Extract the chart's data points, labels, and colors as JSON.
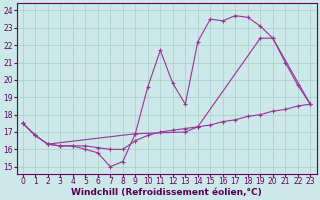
{
  "background_color": "#cce8e8",
  "plot_bg_color": "#cce8e8",
  "grid_color": "#aacccc",
  "line_color": "#993399",
  "xlabel": "Windchill (Refroidissement éolien,°C)",
  "xlabel_fontsize": 6.5,
  "tick_fontsize": 5.5,
  "ylim": [
    14.6,
    24.4
  ],
  "xlim": [
    -0.5,
    23.5
  ],
  "yticks": [
    15,
    16,
    17,
    18,
    19,
    20,
    21,
    22,
    23,
    24
  ],
  "xticks": [
    0,
    1,
    2,
    3,
    4,
    5,
    6,
    7,
    8,
    9,
    10,
    11,
    12,
    13,
    14,
    15,
    16,
    17,
    18,
    19,
    20,
    21,
    22,
    23
  ],
  "line1_x": [
    0,
    1,
    2,
    3,
    4,
    5,
    6,
    7,
    8,
    9,
    10,
    11,
    12,
    13,
    14,
    15,
    16,
    17,
    18,
    19,
    20,
    21,
    22,
    23
  ],
  "line1_y": [
    17.5,
    16.8,
    16.3,
    16.2,
    16.2,
    16.2,
    16.1,
    16.0,
    16.0,
    16.5,
    16.8,
    17.0,
    17.1,
    17.2,
    17.3,
    17.4,
    17.6,
    17.7,
    17.9,
    18.0,
    18.2,
    18.3,
    18.5,
    18.6
  ],
  "line2_x": [
    0,
    1,
    2,
    3,
    4,
    5,
    6,
    7,
    8,
    9,
    10,
    11,
    12,
    13,
    14,
    15,
    16,
    17,
    18,
    19,
    20,
    21,
    22,
    23
  ],
  "line2_y": [
    17.5,
    16.8,
    16.3,
    16.2,
    16.2,
    16.0,
    15.8,
    15.0,
    15.3,
    16.9,
    19.6,
    21.7,
    19.8,
    18.6,
    22.2,
    23.5,
    23.4,
    23.7,
    23.6,
    23.1,
    22.4,
    21.0,
    19.7,
    18.6
  ],
  "line3_x": [
    0,
    1,
    2,
    9,
    13,
    14,
    19,
    20,
    23
  ],
  "line3_y": [
    17.5,
    16.8,
    16.3,
    16.9,
    17.0,
    17.3,
    22.4,
    22.4,
    18.6
  ]
}
